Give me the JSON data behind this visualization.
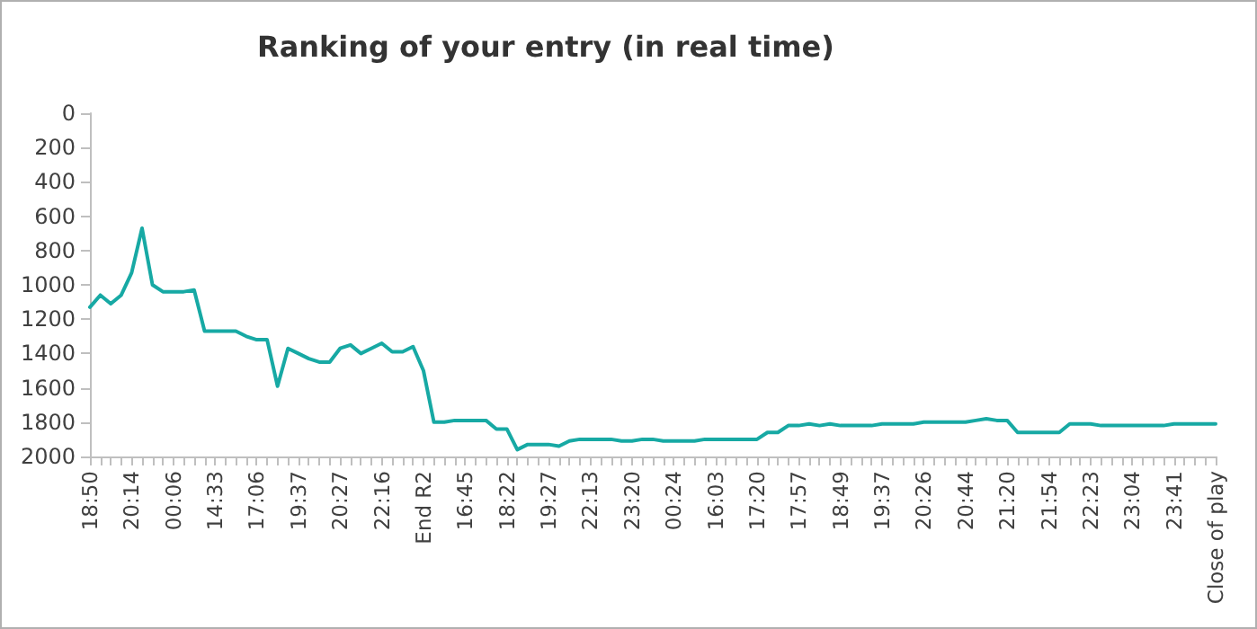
{
  "chart_data": {
    "type": "line",
    "title": "Ranking of your entry (in real time)",
    "categories": [
      "18:50",
      null,
      null,
      null,
      "20:14",
      null,
      null,
      null,
      "00:06",
      null,
      null,
      null,
      "14:33",
      null,
      null,
      null,
      "17:06",
      null,
      null,
      null,
      "19:37",
      null,
      null,
      null,
      "20:27",
      null,
      null,
      null,
      "22:16",
      null,
      null,
      null,
      "End R2",
      null,
      null,
      null,
      "16:45",
      null,
      null,
      null,
      "18:22",
      null,
      null,
      null,
      "19:27",
      null,
      null,
      null,
      "22:13",
      null,
      null,
      null,
      "23:20",
      null,
      null,
      null,
      "00:24",
      null,
      null,
      null,
      "16:03",
      null,
      null,
      null,
      "17:20",
      null,
      null,
      null,
      "17:57",
      null,
      null,
      null,
      "18:49",
      null,
      null,
      null,
      "19:37",
      null,
      null,
      null,
      "20:26",
      null,
      null,
      null,
      "20:44",
      null,
      null,
      null,
      "21:20",
      null,
      null,
      null,
      "21:54",
      null,
      null,
      null,
      "22:23",
      null,
      null,
      null,
      "23:04",
      null,
      null,
      null,
      "23:41",
      null,
      null,
      null,
      "Close of play"
    ],
    "series": [
      {
        "color": "#17a9a4",
        "values": [
          1130,
          1060,
          1110,
          1060,
          930,
          670,
          1000,
          1040,
          1040,
          1040,
          1030,
          1270,
          1270,
          1270,
          1270,
          1300,
          1320,
          1320,
          1590,
          1370,
          1400,
          1430,
          1450,
          1450,
          1370,
          1350,
          1400,
          1370,
          1340,
          1390,
          1390,
          1360,
          1500,
          1800,
          1800,
          1790,
          1790,
          1790,
          1790,
          1840,
          1840,
          1960,
          1930,
          1930,
          1930,
          1940,
          1910,
          1900,
          1900,
          1900,
          1900,
          1910,
          1910,
          1900,
          1900,
          1910,
          1910,
          1910,
          1910,
          1900,
          1900,
          1900,
          1900,
          1900,
          1900,
          1860,
          1860,
          1820,
          1820,
          1810,
          1820,
          1810,
          1820,
          1820,
          1820,
          1820,
          1810,
          1810,
          1810,
          1810,
          1800,
          1800,
          1800,
          1800,
          1800,
          1790,
          1780,
          1790,
          1790,
          1860,
          1860,
          1860,
          1860,
          1860,
          1810,
          1810,
          1810,
          1820,
          1820,
          1820,
          1820,
          1820,
          1820,
          1820,
          1810,
          1810,
          1810,
          1810,
          1810
        ]
      }
    ],
    "ylim": [
      2000,
      0
    ],
    "yticks": [
      0,
      200,
      400,
      600,
      800,
      1000,
      1200,
      1400,
      1600,
      1800,
      2000
    ],
    "grid": false,
    "marker": "none",
    "line_style": "solid"
  }
}
